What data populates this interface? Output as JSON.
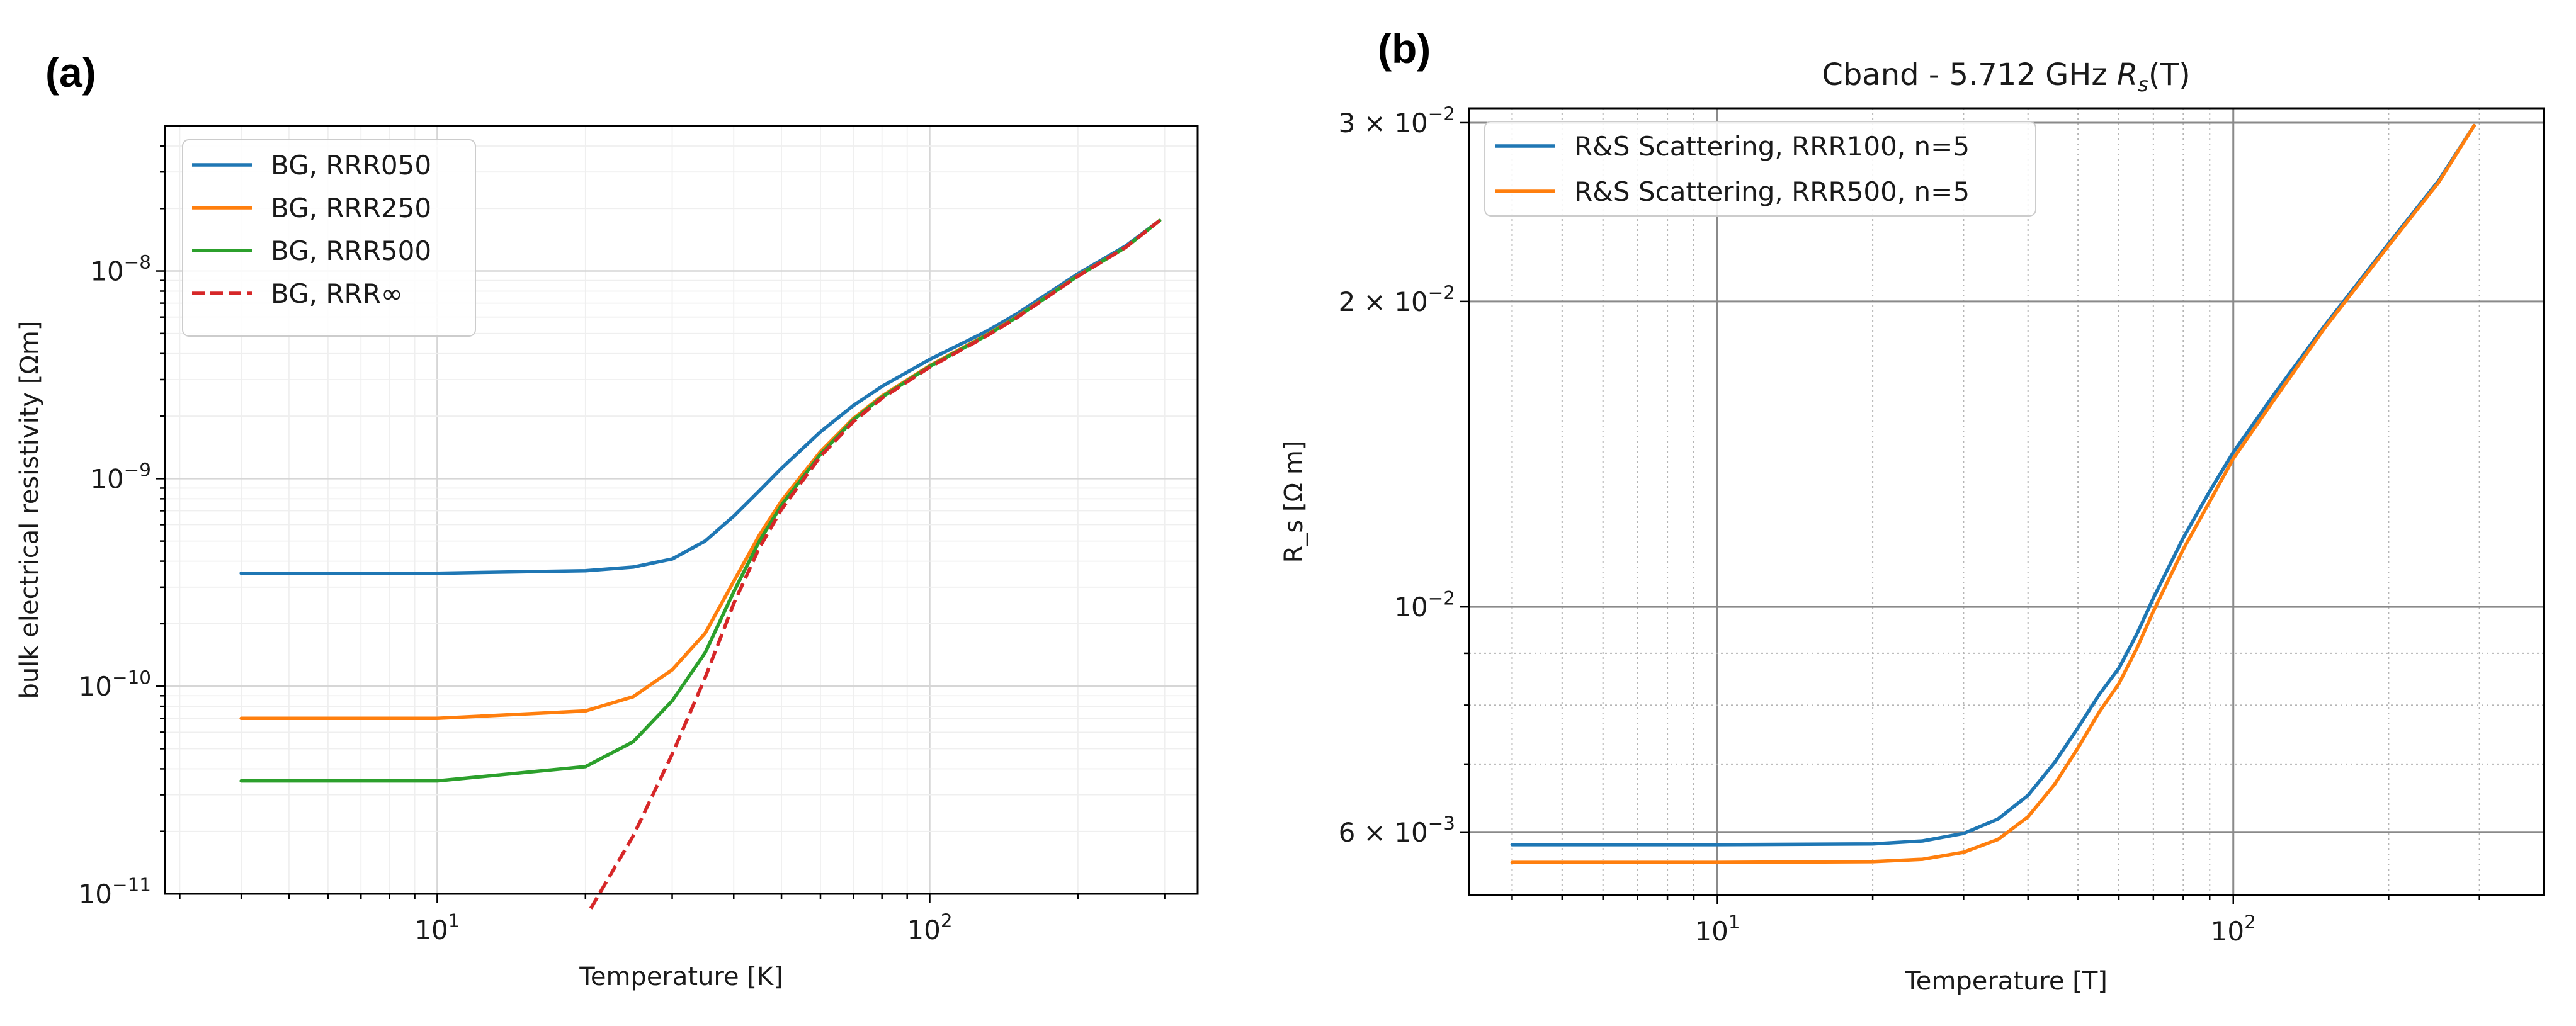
{
  "panel_labels": {
    "a": "(a)",
    "b": "(b)"
  },
  "chart_data": [
    {
      "type": "line",
      "panel": "(a)",
      "title": "",
      "xlabel": "Temperature [K]",
      "ylabel": "bulk electrical resistivity [Ωm]",
      "xscale": "log",
      "yscale": "log",
      "xlim": [
        2.8,
        350
      ],
      "ylim": [
        1e-11,
        5e-08
      ],
      "grid": true,
      "legend_position": "upper-left",
      "xticks": [
        {
          "value": 10,
          "base": "10",
          "exp": "1"
        },
        {
          "value": 100,
          "base": "10",
          "exp": "2"
        }
      ],
      "yticks": [
        {
          "value": 1e-11,
          "base": "10",
          "exp": "−11"
        },
        {
          "value": 1e-10,
          "base": "10",
          "exp": "−10"
        },
        {
          "value": 1e-09,
          "base": "10",
          "exp": "−9"
        },
        {
          "value": 1e-08,
          "base": "10",
          "exp": "−8"
        }
      ],
      "series": [
        {
          "name": "BG, RRR050",
          "color": "#1f77b4",
          "style": "solid",
          "x": [
            4,
            10,
            20,
            25,
            30,
            35,
            40,
            45,
            50,
            60,
            70,
            80,
            100,
            130,
            150,
            200,
            250,
            293
          ],
          "y": [
            3.5e-10,
            3.5e-10,
            3.6e-10,
            3.75e-10,
            4.1e-10,
            5e-10,
            6.6e-10,
            8.7e-10,
            1.12e-09,
            1.68e-09,
            2.25e-09,
            2.78e-09,
            3.75e-09,
            5.1e-09,
            6.2e-09,
            9.7e-09,
            1.32e-08,
            1.75e-08
          ]
        },
        {
          "name": "BG, RRR250",
          "color": "#ff7f0e",
          "style": "solid",
          "x": [
            4,
            10,
            20,
            25,
            30,
            35,
            40,
            45,
            50,
            60,
            70,
            80,
            100,
            130,
            150,
            200,
            250,
            293
          ],
          "y": [
            7e-11,
            7e-11,
            7.6e-11,
            8.9e-11,
            1.2e-10,
            1.8e-10,
            3.2e-10,
            5.3e-10,
            7.8e-10,
            1.35e-09,
            1.95e-09,
            2.5e-09,
            3.5e-09,
            4.9e-09,
            6e-09,
            9.5e-09,
            1.3e-08,
            1.75e-08
          ]
        },
        {
          "name": "BG, RRR500",
          "color": "#2ca02c",
          "style": "solid",
          "x": [
            4,
            10,
            20,
            25,
            30,
            35,
            40,
            45,
            50,
            60,
            70,
            80,
            100,
            130,
            150,
            200,
            250,
            293
          ],
          "y": [
            3.5e-11,
            3.5e-11,
            4.1e-11,
            5.4e-11,
            8.5e-11,
            1.45e-10,
            2.85e-10,
            4.95e-10,
            7.45e-10,
            1.31e-09,
            1.92e-09,
            2.47e-09,
            3.47e-09,
            4.87e-09,
            5.97e-09,
            9.47e-09,
            1.3e-08,
            1.75e-08
          ]
        },
        {
          "name": "BG, RRR∞",
          "color": "#d62728",
          "style": "dashed",
          "x": [
            20.5,
            25,
            30,
            35,
            40,
            45,
            50,
            60,
            70,
            80,
            100,
            130,
            150,
            200,
            250,
            293
          ],
          "y": [
            8.5e-12,
            1.9e-11,
            4.7e-11,
            1.1e-10,
            2.5e-10,
            4.6e-10,
            7.1e-10,
            1.28e-09,
            1.88e-09,
            2.44e-09,
            3.44e-09,
            4.84e-09,
            5.94e-09,
            9.44e-09,
            1.3e-08,
            1.75e-08
          ]
        }
      ]
    },
    {
      "type": "line",
      "panel": "(b)",
      "title_prefix": "Cband - 5.712 GHz ",
      "title_symbol": "R",
      "title_subscript": "s",
      "title_suffix": "(T)",
      "xlabel": "Temperature [T]",
      "ylabel": "R_s [Ω m]",
      "xscale": "log",
      "yscale": "log",
      "xlim": [
        3.3,
        400
      ],
      "ylim": [
        0.0052,
        0.031
      ],
      "grid": true,
      "legend_position": "upper-left",
      "xticks": [
        {
          "value": 10,
          "base": "10",
          "exp": "1"
        },
        {
          "value": 100,
          "base": "10",
          "exp": "2"
        }
      ],
      "yticks": [
        {
          "value": 0.006,
          "base": "6 × 10",
          "exp": "−3"
        },
        {
          "value": 0.01,
          "base": "10",
          "exp": "−2"
        },
        {
          "value": 0.02,
          "base": "2 × 10",
          "exp": "−2"
        },
        {
          "value": 0.03,
          "base": "3 × 10",
          "exp": "−2"
        }
      ],
      "series": [
        {
          "name": "R&S Scattering, RRR100, n=5",
          "color": "#1f77b4",
          "style": "solid",
          "x": [
            4,
            10,
            20,
            25,
            30,
            35,
            40,
            45,
            50,
            55,
            60,
            65,
            70,
            80,
            90,
            100,
            120,
            150,
            200,
            250,
            293
          ],
          "y": [
            0.00583,
            0.00583,
            0.00584,
            0.00588,
            0.00598,
            0.00618,
            0.00652,
            0.00702,
            0.0076,
            0.0082,
            0.0087,
            0.0094,
            0.0102,
            0.0117,
            0.013,
            0.0142,
            0.0162,
            0.0189,
            0.0228,
            0.0263,
            0.0298
          ]
        },
        {
          "name": "R&S Scattering, RRR500, n=5",
          "color": "#ff7f0e",
          "style": "solid",
          "x": [
            4,
            10,
            20,
            25,
            30,
            35,
            40,
            45,
            50,
            55,
            60,
            65,
            70,
            80,
            90,
            100,
            120,
            150,
            200,
            250,
            293
          ],
          "y": [
            0.0056,
            0.0056,
            0.00561,
            0.00564,
            0.00573,
            0.0059,
            0.00621,
            0.00668,
            0.00726,
            0.00788,
            0.0084,
            0.0091,
            0.0099,
            0.0114,
            0.0127,
            0.014,
            0.016,
            0.0188,
            0.0227,
            0.0262,
            0.0298
          ]
        }
      ]
    }
  ]
}
